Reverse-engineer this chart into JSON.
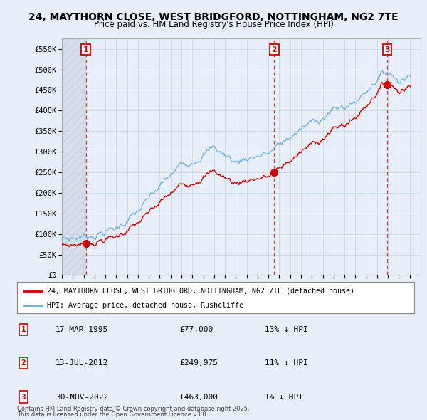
{
  "title": "24, MAYTHORN CLOSE, WEST BRIDGFORD, NOTTINGHAM, NG2 7TE",
  "subtitle": "Price paid vs. HM Land Registry's House Price Index (HPI)",
  "ylabel_ticks": [
    "£0",
    "£50K",
    "£100K",
    "£150K",
    "£200K",
    "£250K",
    "£300K",
    "£350K",
    "£400K",
    "£450K",
    "£500K",
    "£550K"
  ],
  "ytick_values": [
    0,
    50000,
    100000,
    150000,
    200000,
    250000,
    300000,
    350000,
    400000,
    450000,
    500000,
    550000
  ],
  "ylim": [
    0,
    575000
  ],
  "sale_dates_num": [
    1995.21,
    2012.53,
    2022.92
  ],
  "sale_prices": [
    77000,
    249975,
    463000
  ],
  "sale_labels": [
    "1",
    "2",
    "3"
  ],
  "hpi_color": "#6baed6",
  "price_color": "#cc0000",
  "grid_color": "#c8d8e8",
  "plot_bg_color": "#e8eef8",
  "fig_bg_color": "#e8eef8",
  "legend_line1": "24, MAYTHORN CLOSE, WEST BRIDGFORD, NOTTINGHAM, NG2 7TE (detached house)",
  "legend_line2": "HPI: Average price, detached house, Rushcliffe",
  "table_entries": [
    {
      "label": "1",
      "date": "17-MAR-1995",
      "price": "£77,000",
      "hpi": "13% ↓ HPI"
    },
    {
      "label": "2",
      "date": "13-JUL-2012",
      "price": "£249,975",
      "hpi": "11% ↓ HPI"
    },
    {
      "label": "3",
      "date": "30-NOV-2022",
      "price": "£463,000",
      "hpi": "1% ↓ HPI"
    }
  ],
  "footnote1": "Contains HM Land Registry data © Crown copyright and database right 2025.",
  "footnote2": "This data is licensed under the Open Government Licence v3.0.",
  "xmin": 1993,
  "xmax": 2026
}
